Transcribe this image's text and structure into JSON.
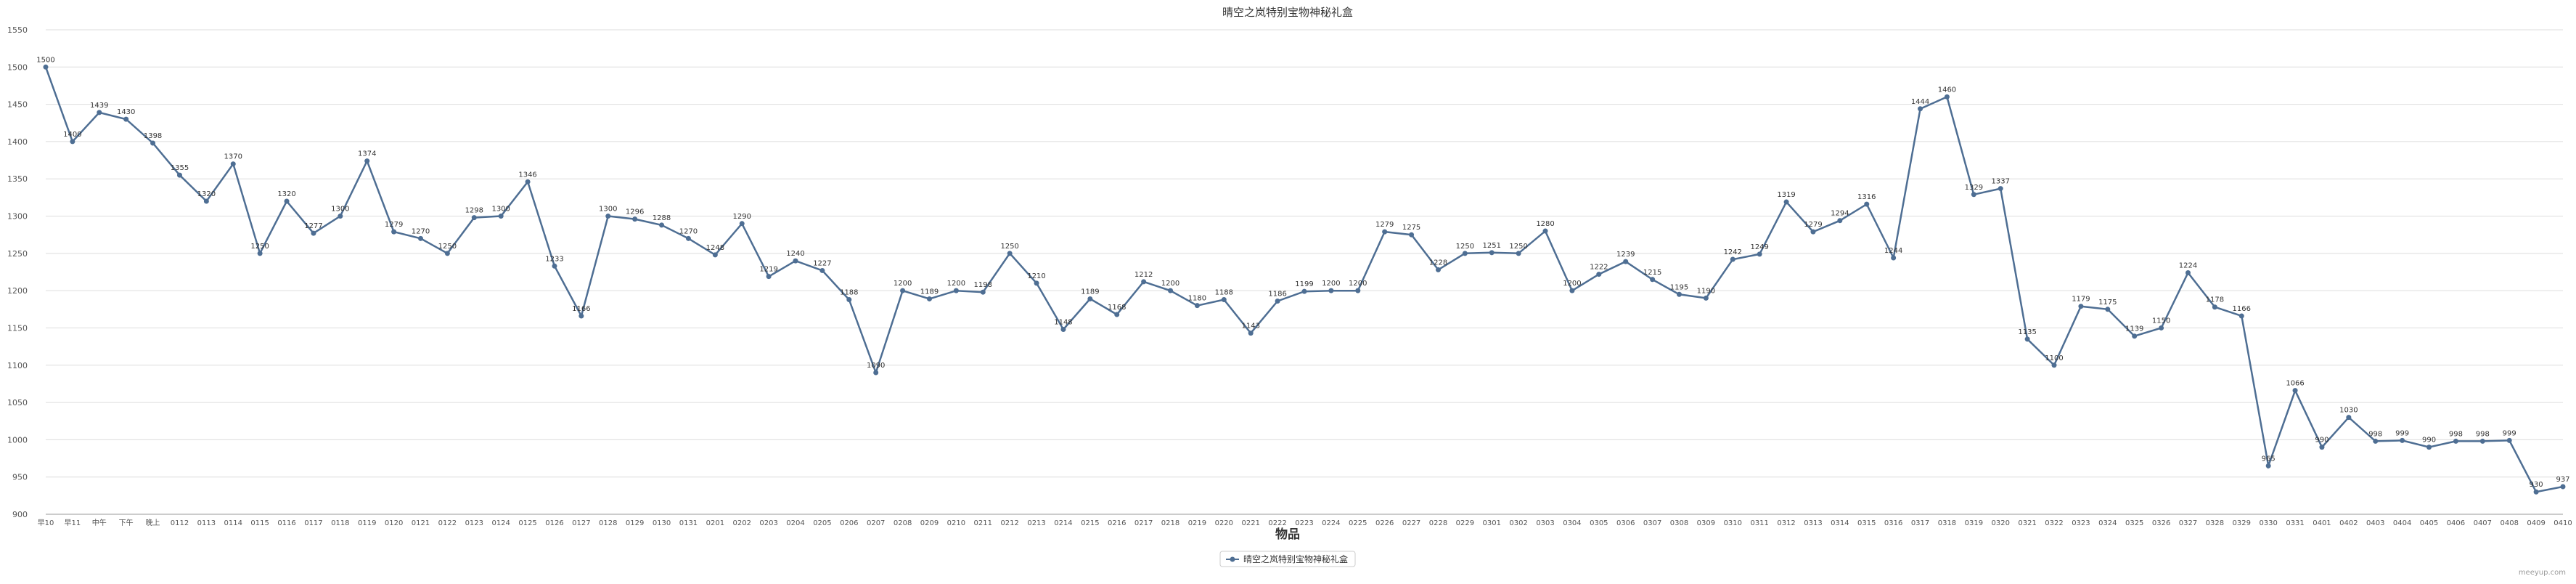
{
  "chart_data": {
    "type": "line",
    "title": "晴空之岚特别宝物神秘礼盒",
    "xlabel": "物品",
    "ylabel": "",
    "ylim": [
      900,
      1550
    ],
    "yticks": [
      900,
      950,
      1000,
      1050,
      1100,
      1150,
      1200,
      1250,
      1300,
      1350,
      1400,
      1450,
      1500,
      1550
    ],
    "grid": true,
    "legend_position": "bottom-center",
    "categories": [
      "早10",
      "早11",
      "中午",
      "下午",
      "晚上",
      "0112",
      "0113",
      "0114",
      "0115",
      "0116",
      "0117",
      "0118",
      "0119",
      "0120",
      "0121",
      "0122",
      "0123",
      "0124",
      "0125",
      "0126",
      "0127",
      "0128",
      "0129",
      "0130",
      "0131",
      "0201",
      "0202",
      "0203",
      "0204",
      "0205",
      "0206",
      "0207",
      "0208",
      "0209",
      "0210",
      "0211",
      "0212",
      "0213",
      "0214",
      "0215",
      "0216",
      "0217",
      "0218",
      "0219",
      "0220",
      "0221",
      "0222",
      "0223",
      "0224",
      "0225",
      "0226",
      "0227",
      "0228",
      "0229",
      "0301",
      "0302",
      "0303",
      "0304",
      "0305",
      "0306",
      "0307",
      "0308",
      "0309",
      "0310",
      "0311",
      "0312",
      "0313",
      "0314",
      "0315",
      "0316",
      "0317",
      "0318",
      "0319",
      "0320",
      "0321",
      "0322",
      "0323",
      "0324",
      "0325",
      "0326",
      "0327",
      "0328",
      "0329",
      "0330",
      "0331",
      "0401",
      "0402",
      "0403",
      "0404",
      "0405",
      "0406",
      "0407",
      "0408",
      "0409",
      "0410"
    ],
    "series": [
      {
        "name": "晴空之岚特别宝物神秘礼盒",
        "color": "#4e6e93",
        "values": [
          1500,
          1400,
          1439,
          1430,
          1398,
          1355,
          1320,
          1370,
          1250,
          1320,
          1277,
          1300,
          1374,
          1279,
          1270,
          1250,
          1298,
          1300,
          1346,
          1233,
          1166,
          1300,
          1296,
          1288,
          1270,
          1248,
          1290,
          1219,
          1240,
          1227,
          1188,
          1090,
          1200,
          1189,
          1200,
          1198,
          1250,
          1210,
          1148,
          1189,
          1168,
          1212,
          1200,
          1180,
          1188,
          1143,
          1186,
          1199,
          1200,
          1200,
          1279,
          1275,
          1228,
          1250,
          1251,
          1250,
          1280,
          1200,
          1222,
          1239,
          1215,
          1195,
          1190,
          1242,
          1249,
          1319,
          1279,
          1294,
          1316,
          1244,
          1444,
          1460,
          1329,
          1337,
          1135,
          1100,
          1179,
          1175,
          1139,
          1150,
          1224,
          1178,
          1166,
          965,
          1066,
          990,
          1030,
          998,
          999,
          990,
          998,
          998,
          999,
          930,
          937
        ]
      }
    ]
  },
  "watermark": "meeyup.com"
}
